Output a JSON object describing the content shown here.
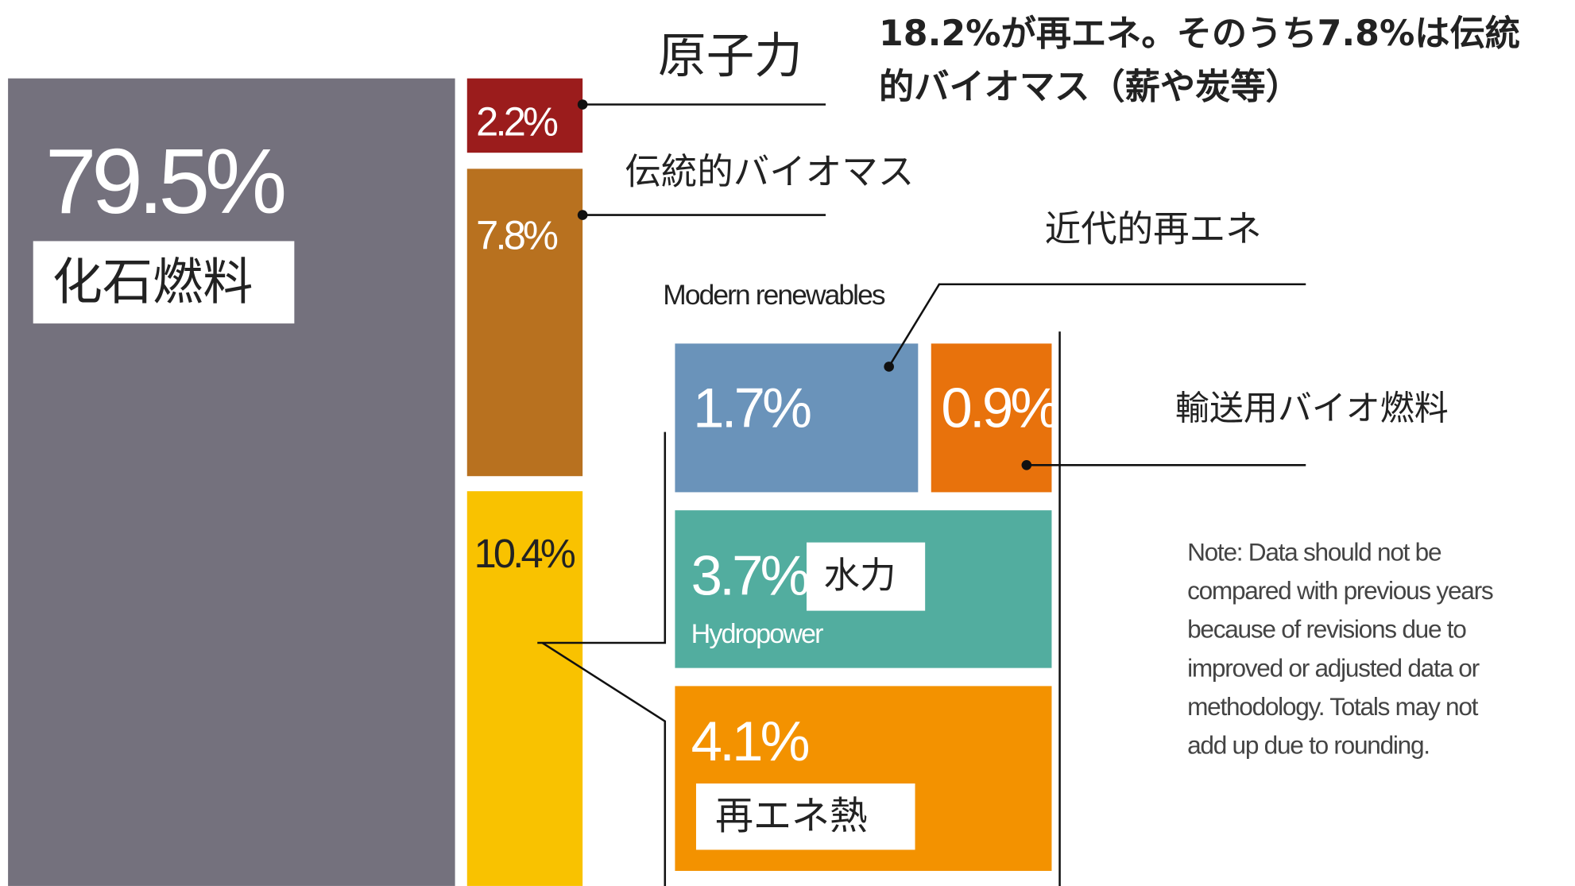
{
  "title": [
    "18.2%が再エネ。そのうち7.8%は伝統",
    "的バイオマス（薪や炭等）"
  ],
  "fossil": {
    "value": "79.5%",
    "label": "化石燃料"
  },
  "nuclear": {
    "value": "2.2%",
    "label": "原子力"
  },
  "traditional_biomass": {
    "value": "7.8%",
    "label": "伝統的バイオマス"
  },
  "renewables": {
    "value": "10.4%"
  },
  "modern": {
    "heading": "Modern renewables",
    "label": "近代的再エネ",
    "blocks": [
      {
        "value": "1.7%"
      },
      {
        "value": "0.9%",
        "label": "輸送用バイオ燃料"
      },
      {
        "value": "3.7%",
        "label": "水力",
        "english": "Hydropower"
      },
      {
        "value": "4.1%",
        "label": "再エネ熱"
      }
    ]
  },
  "note": [
    "Note: Data should not be",
    "compared with previous years",
    "because of revisions due to",
    "improved or adjusted data or",
    "methodology. Totals may not",
    "add up due to rounding."
  ]
}
